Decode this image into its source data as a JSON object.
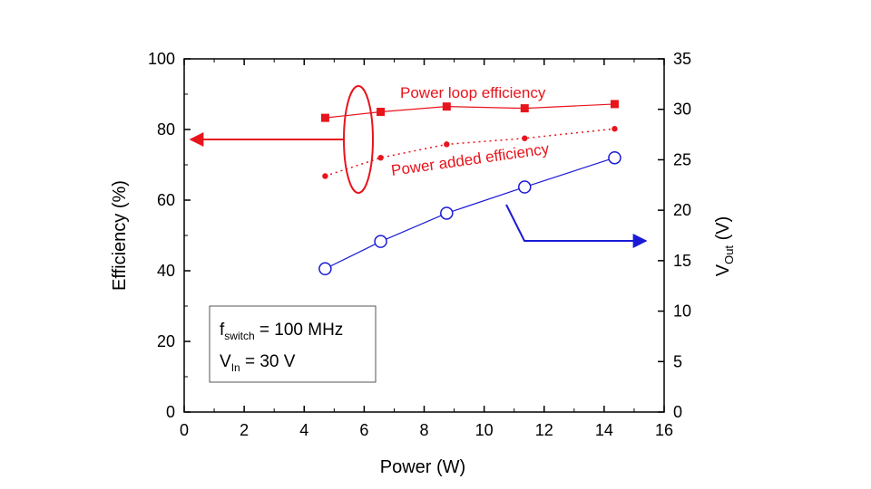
{
  "chart_data": {
    "type": "line",
    "xlabel": "Power (W)",
    "ylabel": "Efficiency (%)",
    "y2label_main": "V",
    "y2label_sub": "Out",
    "y2label_unit": " (V)",
    "xlim": [
      0,
      16
    ],
    "ylim": [
      0,
      100
    ],
    "y2lim": [
      0,
      35
    ],
    "xticks": [
      0,
      2,
      4,
      6,
      8,
      10,
      12,
      14,
      16
    ],
    "yticks": [
      0,
      20,
      40,
      60,
      80,
      100
    ],
    "y2ticks": [
      0,
      5,
      10,
      15,
      20,
      25,
      30,
      35
    ],
    "grid": false,
    "series": [
      {
        "name": "Power loop efficiency",
        "axis": "left",
        "color": "#e8141c",
        "marker": "square",
        "line": "solid",
        "x": [
          4.7,
          6.55,
          8.75,
          11.35,
          14.35
        ],
        "y": [
          83.3,
          85.0,
          86.5,
          86.0,
          87.2
        ]
      },
      {
        "name": "Power added efficiency",
        "axis": "left",
        "color": "#e8141c",
        "marker": "dot",
        "line": "dotted",
        "x": [
          4.7,
          6.55,
          8.75,
          11.35,
          14.35
        ],
        "y": [
          66.8,
          72.0,
          75.8,
          77.5,
          80.2
        ]
      },
      {
        "name": "",
        "axis": "right",
        "color": "#1a1ad6",
        "marker": "open-circle",
        "line": "solid",
        "x": [
          4.7,
          6.55,
          8.75,
          11.35,
          14.35
        ],
        "y": [
          14.2,
          16.9,
          19.7,
          22.3,
          25.2
        ]
      }
    ],
    "annotations": {
      "loop_label": "Power loop efficiency",
      "added_label": "Power added efficiency",
      "left_arrow_color": "#e8141c",
      "right_arrow_color": "#1a1ad6"
    },
    "info_box": {
      "line1_main": "f",
      "line1_sub": "switch",
      "line1_rest": " = 100 MHz",
      "line2_main": "V",
      "line2_sub": "In",
      "line2_rest": " = 30 V"
    }
  }
}
